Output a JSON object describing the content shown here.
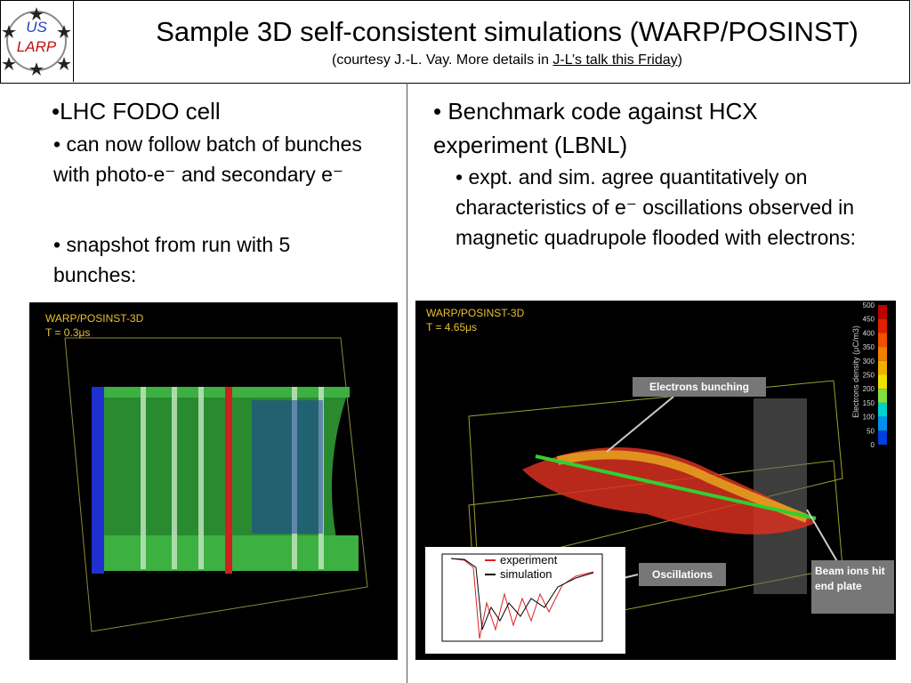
{
  "header": {
    "logo": {
      "top": "US",
      "bottom": "LARP"
    },
    "title": "Sample 3D self-consistent simulations (WARP/POSINST)",
    "subtitle": {
      "before": "(courtesy J.-L. Vay. More details in ",
      "link": "J-L’s talk this Friday",
      "after": ")"
    }
  },
  "left": {
    "bullets": [
      "•LHC FODO cell",
      "• can now follow batch of bunches with photo-e⁻ and secondary e⁻",
      "• snapshot from run with 5 bunches:"
    ],
    "figure": {
      "code": "WARP/POSINST-3D",
      "time": "T = 0.3μs"
    }
  },
  "right": {
    "bullets": [
      "• Benchmark code against HCX experiment (LBNL)",
      "• expt. and sim. agree quantitatively on characteristics of e⁻ oscillations observed in magnetic quadrupole flooded with electrons:"
    ],
    "figure": {
      "code": "WARP/POSINST-3D",
      "time": "T = 4.65μs",
      "colorbar_label": "Electrons density (μC/m3)",
      "colorbar_ticks": [
        "500",
        "450",
        "400",
        "350",
        "300",
        "250",
        "200",
        "150",
        "100",
        "50",
        "0"
      ],
      "callouts": [
        "Electrons bunching",
        "Oscillations",
        "Beam ions hit end plate"
      ],
      "inset_legend": [
        "experiment",
        "simulation"
      ]
    }
  }
}
